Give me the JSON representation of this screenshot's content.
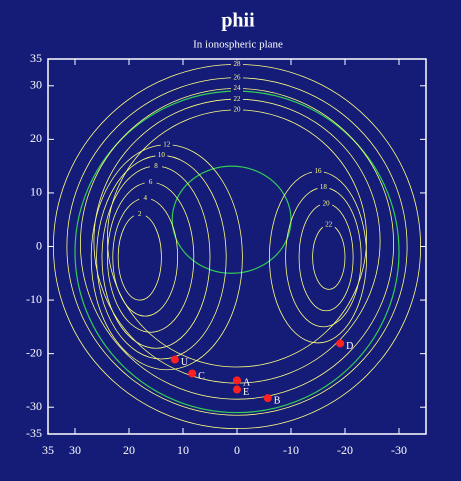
{
  "chart_data": {
    "type": "contour",
    "title": "phii",
    "subtitle": "In ionospheric plane",
    "xlim": [
      35,
      -35
    ],
    "xticks": [
      35,
      30,
      20,
      10,
      0,
      -10,
      -20,
      -30
    ],
    "ylim": [
      -35,
      35
    ],
    "yticks": [
      -35,
      -30,
      -20,
      -10,
      0,
      10,
      20,
      30,
      35
    ],
    "contour_color": "#ffff80",
    "separatrix_color": "#33cc55",
    "point_color": "#ff2020",
    "contours": [
      {
        "level": 28,
        "cx": 0,
        "cy": 0,
        "rx": 34,
        "ry": 34
      },
      {
        "level": 26,
        "cx": 0,
        "cy": 0,
        "rx": 31.5,
        "ry": 31.5
      },
      {
        "level": 24,
        "cx": 0,
        "cy": 0.5,
        "rx": 29,
        "ry": 29
      },
      {
        "level": 22,
        "cx": 0,
        "cy": 1,
        "rx": 26.5,
        "ry": 26.5
      },
      {
        "level": 20,
        "cx": 0,
        "cy": 1.5,
        "rx": 24,
        "ry": 24
      },
      {
        "level": 12,
        "cx": 13,
        "cy": -2,
        "rx": 14,
        "ry": 21
      },
      {
        "level": 10,
        "cx": 14,
        "cy": -2,
        "rx": 12,
        "ry": 19
      },
      {
        "level": 8,
        "cx": 15,
        "cy": -2,
        "rx": 10,
        "ry": 17
      },
      {
        "level": 6,
        "cx": 16,
        "cy": -2,
        "rx": 8,
        "ry": 14
      },
      {
        "level": 4,
        "cx": 17,
        "cy": -2,
        "rx": 6,
        "ry": 11
      },
      {
        "level": 2,
        "cx": 18,
        "cy": -2,
        "rx": 4,
        "ry": 8
      },
      {
        "level": 16,
        "cx": -15,
        "cy": -2,
        "rx": 9,
        "ry": 16
      },
      {
        "level": 18,
        "cx": -16,
        "cy": -2,
        "rx": 7,
        "ry": 13
      },
      {
        "level": 20,
        "cx": -16.5,
        "cy": -2,
        "rx": 5,
        "ry": 10
      },
      {
        "level": 22,
        "cx": -17,
        "cy": -2,
        "rx": 3,
        "ry": 6
      }
    ],
    "separatrices": [
      {
        "cx": 0,
        "cy": -1,
        "rx": 30,
        "ry": 30
      },
      {
        "cx": 1,
        "cy": 5,
        "rx": 11,
        "ry": 10
      }
    ],
    "points": [
      {
        "label": "U",
        "x": 11.5,
        "y": -21.1
      },
      {
        "label": "C",
        "x": 8.3,
        "y": -23.7
      },
      {
        "label": "A",
        "x": 0,
        "y": -25
      },
      {
        "label": "E",
        "x": 0,
        "y": -26.7
      },
      {
        "label": "B",
        "x": -5.7,
        "y": -28.3
      },
      {
        "label": "D",
        "x": -19.1,
        "y": -18.1
      }
    ]
  }
}
